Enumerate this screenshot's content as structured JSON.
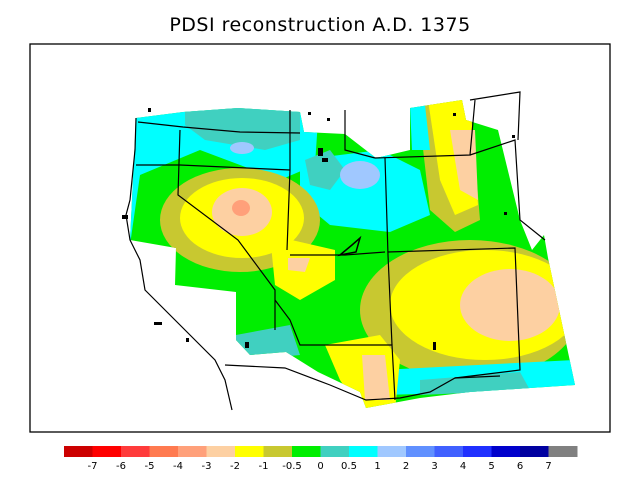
{
  "title": "PDSI reconstruction A.D. 1375",
  "colors": {
    "bin_-7": "#cc0000",
    "bin_-6": "#ff0000",
    "bin_-5": "#ff3b3b",
    "bin_-4": "#ff7a50",
    "bin_-3": "#ffa07a",
    "bin_-2": "#fdd0a2",
    "bin_-1": "#ffff00",
    "bin_-0.5": "#c8c830",
    "bin_0": "#00ee00",
    "bin_0.5": "#40d0c0",
    "bin_1": "#00ffff",
    "bin_2": "#a0c8ff",
    "bin_3": "#6090ff",
    "bin_4": "#4060ff",
    "bin_5": "#2030ff",
    "bin_6": "#0000cc",
    "bin_7": "#0000a0",
    "bin_high": "#808080"
  },
  "legend": {
    "ticks": [
      "-7",
      "-6",
      "-5",
      "-4",
      "-3",
      "-2",
      "-1",
      "-0.5",
      "0",
      "0.5",
      "1",
      "2",
      "3",
      "4",
      "5",
      "6",
      "7"
    ],
    "swatch_colors": [
      "#cc0000",
      "#ff0000",
      "#ff3b3b",
      "#ff7a50",
      "#ffa07a",
      "#fdd0a2",
      "#ffff00",
      "#c8c830",
      "#00ee00",
      "#40d0c0",
      "#00ffff",
      "#a0c8ff",
      "#6090ff",
      "#4060ff",
      "#2030ff",
      "#0000cc",
      "#0000a0",
      "#808080"
    ]
  }
}
